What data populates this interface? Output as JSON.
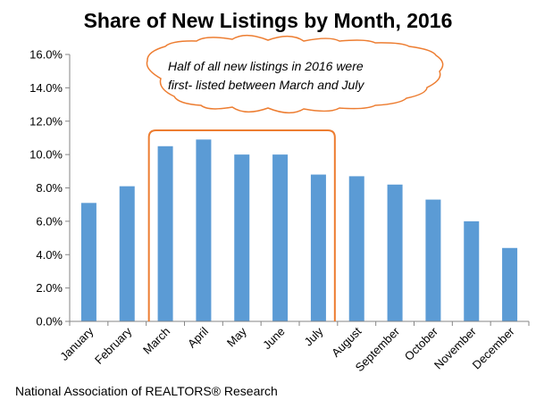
{
  "chart_data": {
    "type": "bar",
    "title": "Share of New Listings by Month, 2016",
    "xlabel": "",
    "ylabel": "",
    "categories": [
      "January",
      "February",
      "March",
      "April",
      "May",
      "June",
      "July",
      "August",
      "September",
      "October",
      "November",
      "December"
    ],
    "values": [
      7.1,
      8.1,
      10.5,
      10.9,
      10.0,
      10.0,
      8.8,
      8.7,
      8.2,
      7.3,
      6.0,
      4.4
    ],
    "value_format": "percent",
    "ylim": [
      0,
      16
    ],
    "yticks": [
      "0.0%",
      "2.0%",
      "4.0%",
      "6.0%",
      "8.0%",
      "10.0%",
      "12.0%",
      "14.0%",
      "16.0%"
    ],
    "grid": false,
    "legend": "none",
    "bar_color": "#5b9bd5",
    "annotations": [
      {
        "type": "callout",
        "text_lines": [
          "Half of all new listings in 2016 were",
          "first- listed between March and July"
        ]
      },
      {
        "type": "bracket",
        "from": "March",
        "to": "July",
        "color": "#ed7d31"
      }
    ],
    "source": "National Association of REALTORS® Research"
  }
}
